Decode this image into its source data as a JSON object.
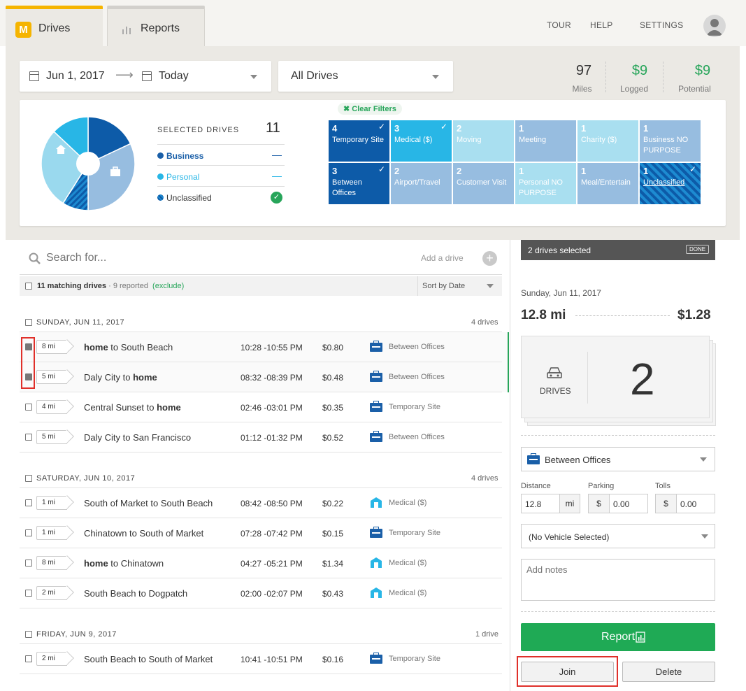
{
  "header": {
    "tabs": [
      {
        "label": "Drives",
        "active": true
      },
      {
        "label": "Reports",
        "active": false
      }
    ],
    "logo_letter": "M",
    "nav": [
      "TOUR",
      "HELP",
      "SETTINGS"
    ]
  },
  "filters": {
    "date_from": "Jun 1, 2017",
    "date_to": "Today",
    "drive_filter": "All Drives",
    "clear_filters": "✖ Clear Filters"
  },
  "stats": [
    {
      "value": "97",
      "label": "Miles"
    },
    {
      "value": "$9",
      "label": "Logged"
    },
    {
      "value": "$9",
      "label": "Potential"
    }
  ],
  "summary": {
    "selected_label": "SELECTED DRIVES",
    "selected_count": "11",
    "legend": [
      {
        "label": "Business",
        "value": "—",
        "color": "#1a5fa8"
      },
      {
        "label": "Personal",
        "value": "—",
        "color": "#28b6e6"
      },
      {
        "label": "Unclassified",
        "value": "✓",
        "color": "#1d8bd1"
      }
    ],
    "pie": [
      {
        "name": "Business dark",
        "fraction": 0.18,
        "color": "#0d5ba8"
      },
      {
        "name": "Business light",
        "fraction": 0.32,
        "color": "#97bde0"
      },
      {
        "name": "Unclassified",
        "fraction": 0.09,
        "color": "#1d8bd1"
      },
      {
        "name": "Personal light",
        "fraction": 0.28,
        "color": "#9ad9ee"
      },
      {
        "name": "Personal",
        "fraction": 0.13,
        "color": "#28b6e6"
      }
    ]
  },
  "tiles": [
    {
      "count": "4",
      "label": "Temporary Site",
      "checked": true,
      "color": "#0d5ba8"
    },
    {
      "count": "3",
      "label": "Medical ($)",
      "checked": true,
      "color": "#28b6e6"
    },
    {
      "count": "2",
      "label": "Moving",
      "checked": false,
      "color": "#a9dff0"
    },
    {
      "count": "1",
      "label": "Meeting",
      "checked": false,
      "color": "#97bde0"
    },
    {
      "count": "1",
      "label": "Charity ($)",
      "checked": false,
      "color": "#a9dff0"
    },
    {
      "count": "1",
      "label": "Business NO PURPOSE",
      "checked": false,
      "color": "#97bde0"
    },
    {
      "count": "3",
      "label": "Between Offices",
      "checked": true,
      "color": "#0d5ba8"
    },
    {
      "count": "2",
      "label": "Airport/Travel",
      "checked": false,
      "color": "#97bde0"
    },
    {
      "count": "2",
      "label": "Customer Visit",
      "checked": false,
      "color": "#97bde0"
    },
    {
      "count": "1",
      "label": "Personal NO PURPOSE",
      "checked": false,
      "color": "#a9dff0"
    },
    {
      "count": "1",
      "label": "Meal/Entertain",
      "checked": false,
      "color": "#97bde0"
    },
    {
      "count": "1",
      "label": "Unclassified",
      "checked": true,
      "color": "#1d8bd1",
      "striped": true
    }
  ],
  "list": {
    "search_placeholder": "Search for...",
    "add_drive": "Add a drive",
    "matching": "11 matching drives",
    "reported": "· 9 reported",
    "exclude": "(exclude)",
    "sort": "Sort by Date",
    "days": [
      {
        "label": "SUNDAY, JUN 11, 2017",
        "count": "4 drives",
        "drives": [
          {
            "miles": "8 mi",
            "route_pre": "",
            "route_bold_1": "home",
            "route_mid": " to South Beach",
            "route_bold_2": "",
            "time": "10:28 -10:55 PM",
            "amount": "$0.80",
            "purpose": "Between Offices",
            "icon": "biz",
            "checked": true
          },
          {
            "miles": "5 mi",
            "route_pre": "",
            "route_bold_1": "",
            "route_mid": "Daly City to ",
            "route_bold_2": "home",
            "time": "08:32 -08:39 PM",
            "amount": "$0.48",
            "purpose": "Between Offices",
            "icon": "biz",
            "checked": true
          },
          {
            "miles": "4 mi",
            "route_pre": "",
            "route_bold_1": "",
            "route_mid": "Central Sunset to ",
            "route_bold_2": "home",
            "time": "02:46 -03:01 PM",
            "amount": "$0.35",
            "purpose": "Temporary Site",
            "icon": "biz",
            "checked": false
          },
          {
            "miles": "5 mi",
            "route_pre": "",
            "route_bold_1": "",
            "route_mid": "Daly City to San Francisco",
            "route_bold_2": "",
            "time": "01:12 -01:32 PM",
            "amount": "$0.52",
            "purpose": "Between Offices",
            "icon": "biz",
            "checked": false
          }
        ]
      },
      {
        "label": "SATURDAY, JUN 10, 2017",
        "count": "4 drives",
        "drives": [
          {
            "miles": "1 mi",
            "route_pre": "",
            "route_bold_1": "",
            "route_mid": "South of Market to South Beach",
            "route_bold_2": "",
            "time": "08:42 -08:50 PM",
            "amount": "$0.22",
            "purpose": "Medical ($)",
            "icon": "med",
            "checked": false
          },
          {
            "miles": "1 mi",
            "route_pre": "",
            "route_bold_1": "",
            "route_mid": "Chinatown to South of Market",
            "route_bold_2": "",
            "time": "07:28 -07:42 PM",
            "amount": "$0.15",
            "purpose": "Temporary Site",
            "icon": "biz",
            "checked": false
          },
          {
            "miles": "8 mi",
            "route_pre": "",
            "route_bold_1": "home",
            "route_mid": " to Chinatown",
            "route_bold_2": "",
            "time": "04:27 -05:21 PM",
            "amount": "$1.34",
            "purpose": "Medical ($)",
            "icon": "med",
            "checked": false
          },
          {
            "miles": "2 mi",
            "route_pre": "",
            "route_bold_1": "",
            "route_mid": "South Beach to Dogpatch",
            "route_bold_2": "",
            "time": "02:00 -02:07 PM",
            "amount": "$0.43",
            "purpose": "Medical ($)",
            "icon": "med",
            "checked": false
          }
        ]
      },
      {
        "label": "FRIDAY, JUN 9, 2017",
        "count": "1 drive",
        "drives": [
          {
            "miles": "2 mi",
            "route_pre": "",
            "route_bold_1": "",
            "route_mid": "South Beach to South of Market",
            "route_bold_2": "",
            "time": "10:41 -10:51 PM",
            "amount": "$0.16",
            "purpose": "Temporary Site",
            "icon": "biz",
            "checked": false
          }
        ]
      }
    ]
  },
  "detail": {
    "selected_banner": "2 drives selected",
    "done": "DONE",
    "date": "Sunday, Jun 11, 2017",
    "distance": "12.8 mi",
    "value": "$1.28",
    "drives_label": "DRIVES",
    "drives_count": "2",
    "purpose": "Between Offices",
    "distance_label": "Distance",
    "distance_value": "12.8",
    "distance_unit": "mi",
    "parking_label": "Parking",
    "parking_value": "0.00",
    "tolls_label": "Tolls",
    "tolls_value": "0.00",
    "currency": "$",
    "vehicle": "(No Vehicle Selected)",
    "notes_placeholder": "Add notes",
    "report_button": "Report",
    "join_button": "Join",
    "delete_button": "Delete"
  }
}
